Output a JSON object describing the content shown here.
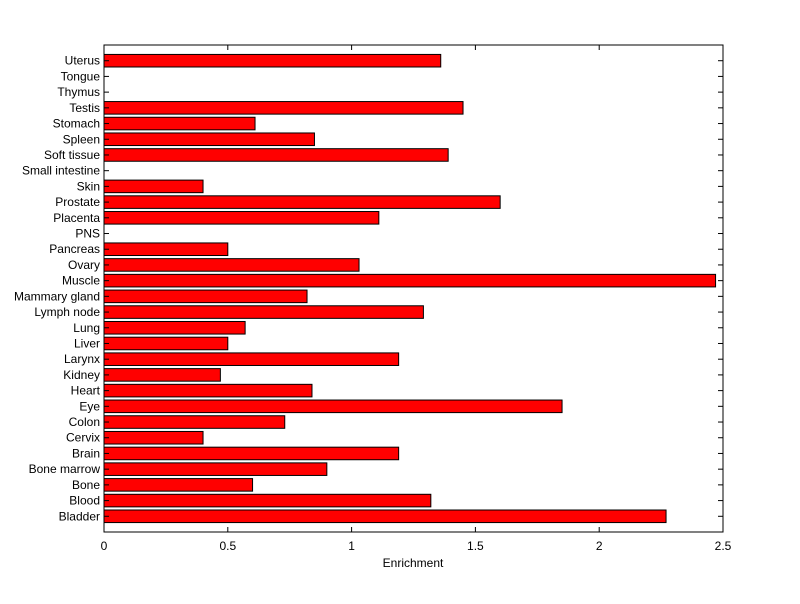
{
  "chart_data": {
    "type": "bar",
    "orientation": "horizontal",
    "title": "",
    "xlabel": "Enrichment",
    "ylabel": "",
    "xlim": [
      0,
      2.5
    ],
    "xticks": [
      0,
      0.5,
      1,
      1.5,
      2,
      2.5
    ],
    "xtick_labels": [
      "0",
      "0.5",
      "1",
      "1.5",
      "2",
      "2.5"
    ],
    "grid": false,
    "legend": "none",
    "bar_color": "#ff0000",
    "edge_color": "#000000",
    "categories": [
      "Uterus",
      "Tongue",
      "Thymus",
      "Testis",
      "Stomach",
      "Spleen",
      "Soft tissue",
      "Small intestine",
      "Skin",
      "Prostate",
      "Placenta",
      "PNS",
      "Pancreas",
      "Ovary",
      "Muscle",
      "Mammary gland",
      "Lymph node",
      "Lung",
      "Liver",
      "Larynx",
      "Kidney",
      "Heart",
      "Eye",
      "Colon",
      "Cervix",
      "Brain",
      "Bone marrow",
      "Bone",
      "Blood",
      "Bladder"
    ],
    "values": [
      1.36,
      0,
      0,
      1.45,
      0.61,
      0.85,
      1.39,
      0,
      0.4,
      1.6,
      1.11,
      0,
      0.5,
      1.03,
      2.47,
      0.82,
      1.29,
      0.57,
      0.5,
      1.19,
      0.47,
      0.84,
      1.85,
      0.73,
      0.4,
      1.19,
      0.9,
      0.6,
      1.32,
      2.27
    ]
  }
}
